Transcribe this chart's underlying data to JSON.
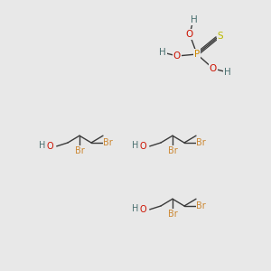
{
  "bg_color": "#e8e8e8",
  "colors": {
    "C": "#3a3a3a",
    "H": "#4a7070",
    "O": "#cc1100",
    "P": "#cc8800",
    "S": "#bbbb00",
    "Br": "#cc8833",
    "bond": "#3a3a3a"
  },
  "figsize": [
    3.0,
    3.0
  ],
  "dpi": 100
}
